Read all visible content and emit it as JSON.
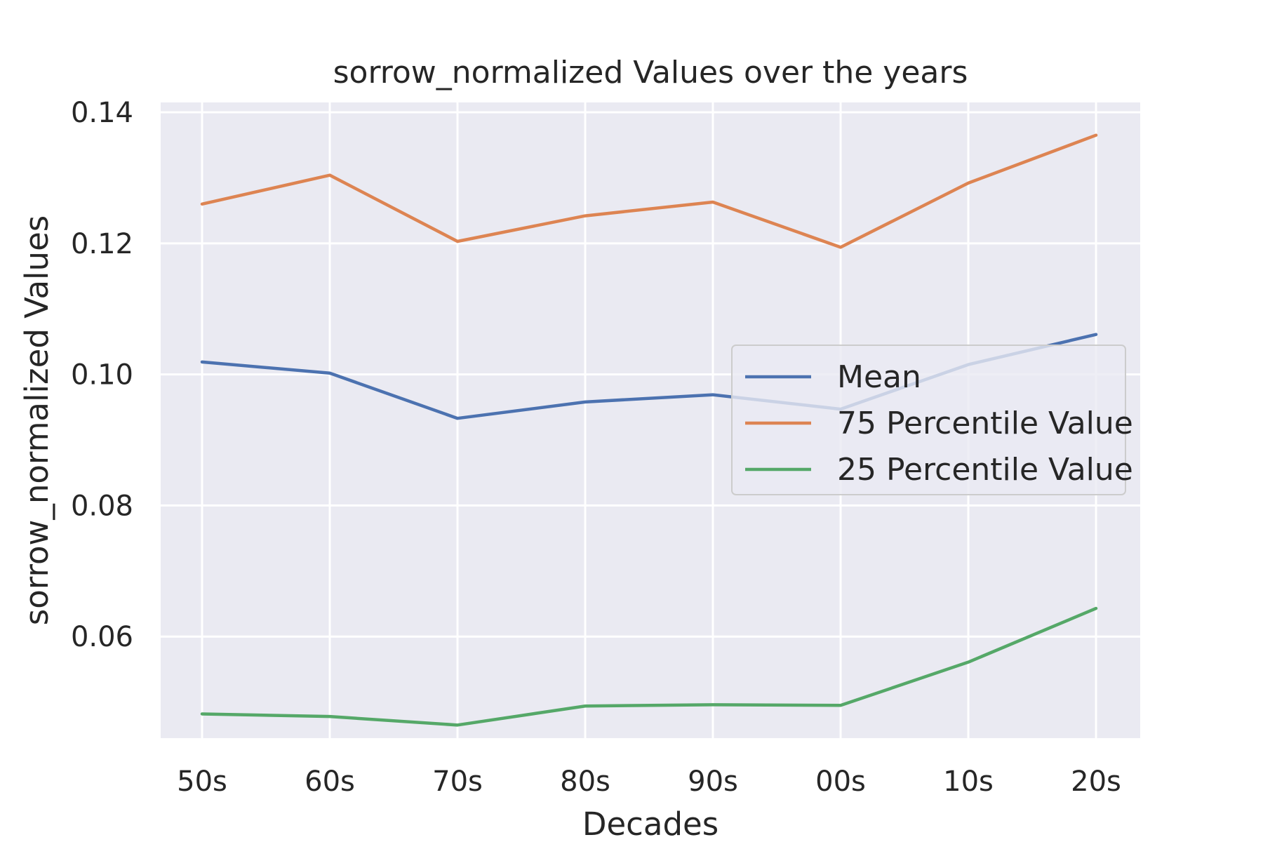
{
  "chart_data": {
    "type": "line",
    "title": "sorrow_normalized Values over the years",
    "xlabel": "Decades",
    "ylabel": "sorrow_normalized Values",
    "categories": [
      "50s",
      "60s",
      "70s",
      "80s",
      "90s",
      "00s",
      "10s",
      "20s"
    ],
    "y_ticks": [
      "0.06",
      "0.08",
      "0.10",
      "0.12",
      "0.14"
    ],
    "ylim": [
      0.0445,
      0.1415
    ],
    "grid": true,
    "legend_position": "center-right",
    "series": [
      {
        "name": "Mean",
        "color": "#4C72B0",
        "values": [
          0.1019,
          0.1002,
          0.0933,
          0.0958,
          0.0969,
          0.0947,
          0.1015,
          0.1061
        ]
      },
      {
        "name": "75 Percentile Value",
        "color": "#DD8452",
        "values": [
          0.126,
          0.1304,
          0.1203,
          0.1242,
          0.1263,
          0.1194,
          0.1292,
          0.1365
        ]
      },
      {
        "name": "25 Percentile Value",
        "color": "#55A868",
        "values": [
          0.0482,
          0.0478,
          0.0465,
          0.0494,
          0.0496,
          0.0495,
          0.0561,
          0.0643
        ]
      }
    ]
  }
}
